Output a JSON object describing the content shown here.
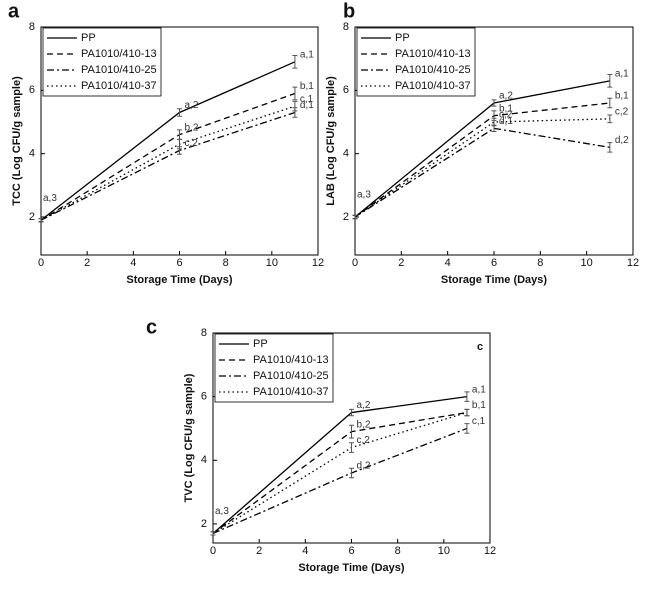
{
  "chart_data": [
    {
      "type": "line",
      "panel_label": "a",
      "x_label": "Storage Time (Days)",
      "y_label": "TCC (Log CFU/g sample)",
      "xlim": [
        0,
        12
      ],
      "xticks": [
        0,
        2,
        4,
        6,
        8,
        10,
        12
      ],
      "ylim": [
        0.8,
        8
      ],
      "yticks": [
        2,
        4,
        6,
        8
      ],
      "legend": "upper left",
      "x": [
        0,
        6,
        11
      ],
      "series": [
        {
          "name": "PP",
          "color": "#000000",
          "dash": "solid",
          "values": [
            1.9,
            5.3,
            6.9
          ],
          "errors": [
            0.05,
            0.12,
            0.2
          ],
          "point_labels": [
            "a,3",
            "a,2",
            "a,1"
          ]
        },
        {
          "name": "PA1010/410-13",
          "color": "#000000",
          "dash": "dashed",
          "values": [
            1.9,
            4.6,
            5.9
          ],
          "errors": [
            0.05,
            0.15,
            0.2
          ],
          "point_labels": [
            null,
            "b,2",
            "b,1"
          ]
        },
        {
          "name": "PA1010/410-25",
          "color": "#000000",
          "dash": "dashdot",
          "values": [
            1.9,
            4.1,
            5.3
          ],
          "errors": [
            0.05,
            0.12,
            0.15
          ],
          "point_labels": [
            null,
            "c,2",
            "d,1"
          ]
        },
        {
          "name": "PA1010/410-37",
          "color": "#000000",
          "dash": "dotted",
          "values": [
            1.9,
            4.3,
            5.5
          ],
          "errors": [
            0.05,
            0.15,
            0.15
          ],
          "point_labels": [
            null,
            null,
            "c,1"
          ]
        }
      ]
    },
    {
      "type": "line",
      "panel_label": "b",
      "x_label": "Storage Time (Days)",
      "y_label": "LAB (Log CFU/g sample)",
      "xlim": [
        0,
        12
      ],
      "xticks": [
        0,
        2,
        4,
        6,
        8,
        10,
        12
      ],
      "ylim": [
        0.8,
        8
      ],
      "yticks": [
        2,
        4,
        6,
        8
      ],
      "legend": "upper left",
      "x": [
        0,
        6,
        11
      ],
      "series": [
        {
          "name": "PP",
          "color": "#000000",
          "dash": "solid",
          "values": [
            2.0,
            5.6,
            6.3
          ],
          "errors": [
            0.05,
            0.1,
            0.2
          ],
          "point_labels": [
            "a,3",
            "a,2",
            "a,1"
          ]
        },
        {
          "name": "PA1010/410-13",
          "color": "#000000",
          "dash": "dashed",
          "values": [
            2.0,
            5.2,
            5.6
          ],
          "errors": [
            0.05,
            0.15,
            0.15
          ],
          "point_labels": [
            null,
            "b,1",
            "b,1"
          ]
        },
        {
          "name": "PA1010/410-25",
          "color": "#000000",
          "dash": "dashdot",
          "values": [
            2.0,
            4.8,
            4.2
          ],
          "errors": [
            0.05,
            0.1,
            0.15
          ],
          "point_labels": [
            null,
            "d,1",
            "d,2"
          ]
        },
        {
          "name": "PA1010/410-37",
          "color": "#000000",
          "dash": "dotted",
          "values": [
            2.0,
            5.0,
            5.1
          ],
          "errors": [
            0.05,
            0.12,
            0.12
          ],
          "point_labels": [
            null,
            "c,2",
            "c,2"
          ]
        }
      ]
    },
    {
      "type": "line",
      "panel_label": "c",
      "inset_label": "c",
      "x_label": "Storage Time (Days)",
      "y_label": "TVC (Log CFU/g sample)",
      "xlim": [
        0,
        12
      ],
      "xticks": [
        0,
        2,
        4,
        6,
        8,
        10,
        12
      ],
      "ylim": [
        1.4,
        8
      ],
      "yticks": [
        2,
        4,
        6,
        8
      ],
      "legend": "upper left",
      "x": [
        0,
        6,
        11
      ],
      "series": [
        {
          "name": "PP",
          "color": "#000000",
          "dash": "solid",
          "values": [
            1.7,
            5.5,
            6.0
          ],
          "errors": [
            0.05,
            0.1,
            0.15
          ],
          "point_labels": [
            "a,3",
            "a,2",
            "a,1"
          ]
        },
        {
          "name": "PA1010/410-13",
          "color": "#000000",
          "dash": "dashed",
          "values": [
            1.7,
            4.9,
            5.5
          ],
          "errors": [
            0.05,
            0.2,
            0.1
          ],
          "point_labels": [
            null,
            "b,2",
            "b,1"
          ]
        },
        {
          "name": "PA1010/410-25",
          "color": "#000000",
          "dash": "dashdot",
          "values": [
            1.7,
            3.6,
            5.0
          ],
          "errors": [
            0.05,
            0.15,
            0.15
          ],
          "point_labels": [
            null,
            "d,2",
            "c,1"
          ]
        },
        {
          "name": "PA1010/410-37",
          "color": "#000000",
          "dash": "dotted",
          "values": [
            1.7,
            4.4,
            5.5
          ],
          "errors": [
            0.05,
            0.15,
            0.1
          ],
          "point_labels": [
            null,
            "c,2",
            null
          ]
        }
      ]
    }
  ]
}
